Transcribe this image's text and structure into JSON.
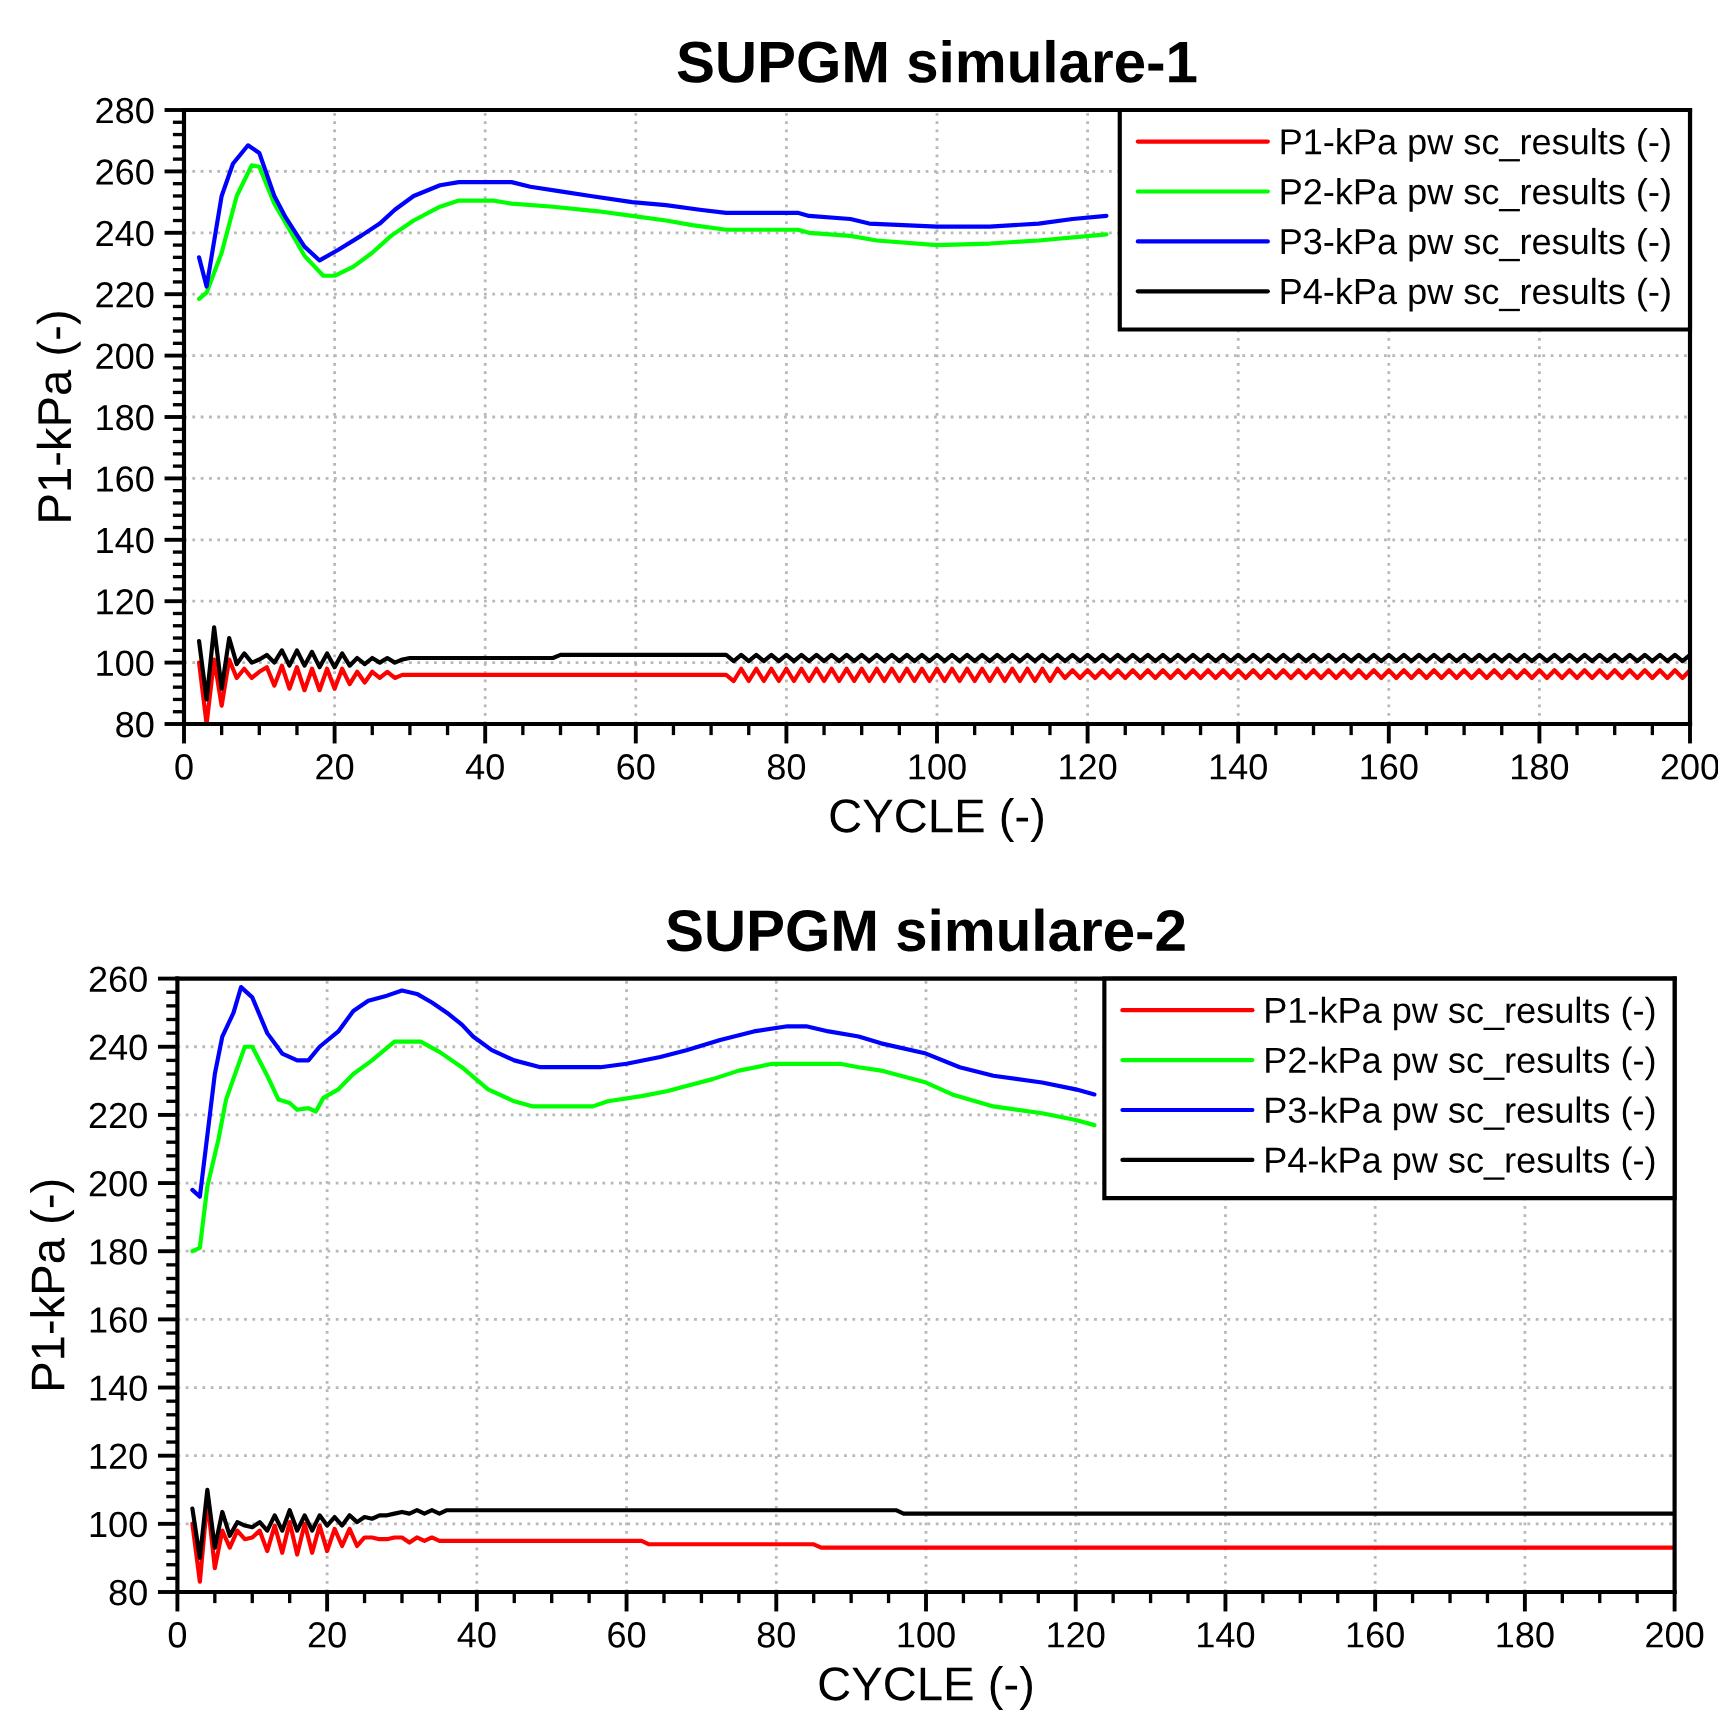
{
  "chart_data": [
    {
      "type": "line",
      "title": "SUPGM simulare-1",
      "xlabel": "CYCLE (-)",
      "ylabel": "P1-kPa (-)",
      "xlim": [
        0,
        200
      ],
      "ylim": [
        80,
        280
      ],
      "xticks": [
        0,
        {
          "value": 5,
          "label": null
        },
        {
          "value": 10,
          "label": null
        },
        {
          "value": 15,
          "label": null
        },
        20,
        {
          "value": 25,
          "label": null
        },
        {
          "value": 30,
          "label": null
        },
        {
          "value": 35,
          "label": null
        },
        40,
        {
          "value": 45,
          "label": null
        },
        {
          "value": 50,
          "label": null
        },
        {
          "value": 55,
          "label": null
        },
        60,
        {
          "value": 65,
          "label": null
        },
        {
          "value": 70,
          "label": null
        },
        {
          "value": 75,
          "label": null
        },
        80,
        {
          "value": 85,
          "label": null
        },
        {
          "value": 90,
          "label": null
        },
        {
          "value": 95,
          "label": null
        },
        100,
        {
          "value": 105,
          "label": null
        },
        {
          "value": 110,
          "label": null
        },
        {
          "value": 115,
          "label": null
        },
        120,
        {
          "value": 125,
          "label": null
        },
        {
          "value": 130,
          "label": null
        },
        {
          "value": 135,
          "label": null
        },
        140,
        {
          "value": 145,
          "label": null
        },
        {
          "value": 150,
          "label": null
        },
        {
          "value": 155,
          "label": null
        },
        160,
        {
          "value": 165,
          "label": null
        },
        {
          "value": 170,
          "label": null
        },
        {
          "value": 175,
          "label": null
        },
        180,
        {
          "value": 185,
          "label": null
        },
        {
          "value": 190,
          "label": null
        },
        {
          "value": 195,
          "label": null
        },
        200
      ],
      "yticks": [
        80,
        {
          "value": 84,
          "label": null
        },
        {
          "value": 88,
          "label": null
        },
        {
          "value": 92,
          "label": null
        },
        {
          "value": 96,
          "label": null
        },
        100,
        {
          "value": 104,
          "label": null
        },
        {
          "value": 108,
          "label": null
        },
        {
          "value": 112,
          "label": null
        },
        {
          "value": 116,
          "label": null
        },
        120,
        {
          "value": 124,
          "label": null
        },
        {
          "value": 128,
          "label": null
        },
        {
          "value": 132,
          "label": null
        },
        {
          "value": 136,
          "label": null
        },
        140,
        {
          "value": 144,
          "label": null
        },
        {
          "value": 148,
          "label": null
        },
        {
          "value": 152,
          "label": null
        },
        {
          "value": 156,
          "label": null
        },
        160,
        {
          "value": 164,
          "label": null
        },
        {
          "value": 168,
          "label": null
        },
        {
          "value": 172,
          "label": null
        },
        {
          "value": 176,
          "label": null
        },
        180,
        {
          "value": 184,
          "label": null
        },
        {
          "value": 188,
          "label": null
        },
        {
          "value": 192,
          "label": null
        },
        {
          "value": 196,
          "label": null
        },
        200,
        {
          "value": 204,
          "label": null
        },
        {
          "value": 208,
          "label": null
        },
        {
          "value": 212,
          "label": null
        },
        {
          "value": 216,
          "label": null
        },
        220,
        {
          "value": 224,
          "label": null
        },
        {
          "value": 228,
          "label": null
        },
        {
          "value": 232,
          "label": null
        },
        {
          "value": 236,
          "label": null
        },
        240,
        {
          "value": 244,
          "label": null
        },
        {
          "value": 248,
          "label": null
        },
        {
          "value": 252,
          "label": null
        },
        {
          "value": 256,
          "label": null
        },
        260,
        {
          "value": 264,
          "label": null
        },
        {
          "value": 268,
          "label": null
        },
        {
          "value": 272,
          "label": null
        },
        {
          "value": 276,
          "label": null
        },
        280
      ],
      "grid": true,
      "legend": "top right",
      "line_style": "solid",
      "series": [
        {
          "name": "P1-kPa pw sc_results (-)",
          "color": "#ff0000",
          "x": [
            2,
            3,
            4,
            5,
            6,
            7,
            8,
            9,
            10,
            11,
            12,
            13,
            14,
            15,
            16,
            17,
            18,
            19,
            20,
            21,
            22,
            23,
            24,
            25,
            26,
            27,
            28,
            29,
            30,
            72,
            73,
            74,
            75,
            76,
            77,
            78,
            79,
            80,
            81,
            82,
            83,
            84,
            85,
            86,
            87,
            88,
            89,
            90,
            91,
            92,
            93,
            94,
            95,
            96,
            97,
            98,
            99,
            100,
            101,
            102,
            103,
            104,
            105,
            106,
            107,
            108,
            109,
            110,
            111,
            112,
            113,
            114,
            115,
            116,
            117,
            118,
            119,
            120,
            121,
            122,
            123,
            124,
            125,
            126,
            127,
            128,
            129,
            130,
            131,
            132,
            133,
            134,
            135,
            136,
            137,
            138,
            139,
            140,
            141,
            142,
            143,
            144,
            145,
            146,
            147,
            148,
            149,
            150,
            151,
            152,
            153,
            154,
            155,
            156,
            157,
            158,
            159,
            160,
            161,
            162,
            163,
            164,
            165,
            166,
            167,
            168,
            169,
            170,
            171,
            172,
            173,
            174,
            175,
            176,
            177,
            178,
            179,
            180,
            181,
            182,
            183,
            184,
            185,
            186,
            187,
            188,
            189,
            190,
            191,
            192,
            193,
            194,
            195,
            196,
            197,
            198,
            199,
            200
          ],
          "values": [
            100,
            80,
            101,
            86,
            101,
            95,
            98,
            95,
            97,
            98.5,
            92.5,
            99,
            91.5,
            98.5,
            91,
            98,
            91,
            98,
            91.5,
            98,
            93,
            97,
            93.5,
            97,
            95,
            97,
            95,
            96,
            96,
            96,
            94,
            98,
            94,
            98,
            94,
            98,
            94,
            98,
            94,
            98,
            94,
            98,
            94,
            98,
            94,
            98,
            94,
            98,
            94,
            98,
            94,
            98,
            94,
            98,
            94,
            98,
            94,
            98,
            94,
            98,
            94,
            98,
            94,
            98,
            94,
            98,
            94,
            98,
            94,
            98,
            94,
            98,
            94,
            98,
            95,
            97.5,
            95,
            97.5,
            95,
            97.5,
            95,
            97.5,
            95,
            97.5,
            95,
            97.5,
            95,
            97.5,
            95,
            97.5,
            95,
            97.5,
            95,
            97.5,
            95,
            97.5,
            95,
            97.5,
            95,
            97.5,
            95,
            97.5,
            95,
            97.5,
            95,
            97.5,
            95,
            97.5,
            95,
            97.5,
            95,
            97.5,
            95,
            97.5,
            95,
            97.5,
            95,
            97.5,
            95,
            97.5,
            95,
            97.5,
            95,
            97.5,
            95,
            97.5,
            95,
            97.5,
            95,
            97.5,
            95,
            97.5,
            95,
            97.5,
            95,
            97.5,
            95,
            97.5,
            95,
            97.5,
            95,
            97.5,
            95,
            97.5,
            95,
            97.5,
            95,
            97.5,
            95,
            97.5,
            95,
            97.5,
            95,
            97.5,
            95,
            97.5,
            95,
            97.5
          ]
        },
        {
          "name": "P2-kPa pw sc_results (-)",
          "color": "#00ff00",
          "x": [
            2,
            3,
            5,
            7,
            9,
            10,
            12,
            14.5,
            16,
            18.5,
            20,
            22.5,
            25,
            27.5,
            30.5,
            34,
            36.5,
            41,
            43.5,
            49,
            55,
            59.5,
            64,
            67.5,
            72,
            81.5,
            83,
            88.5,
            92,
            100,
            107,
            113.5,
            122.5
          ],
          "values": [
            218.5,
            220.5,
            233.5,
            252,
            262,
            261.5,
            249.5,
            239,
            232.5,
            226,
            226,
            229,
            233.5,
            239,
            244,
            248.5,
            250.5,
            250.5,
            249.5,
            248.5,
            247,
            245.5,
            244,
            242.5,
            241,
            241,
            240,
            239,
            237.5,
            236,
            236.5,
            237.5,
            239.5
          ]
        },
        {
          "name": "P3-kPa pw sc_results (-)",
          "color": "#0000ff",
          "x": [
            2,
            3,
            5,
            6.5,
            8.5,
            10,
            12,
            13.5,
            16,
            18,
            20.5,
            23.5,
            26,
            28,
            30.5,
            34,
            36.5,
            43.5,
            46,
            50,
            54,
            59.5,
            64,
            68.5,
            72,
            81.5,
            83,
            88.5,
            91,
            95.5,
            100,
            107,
            113.5,
            118,
            122.5
          ],
          "values": [
            232,
            222.5,
            252,
            262.5,
            268.5,
            266,
            252,
            245,
            235.5,
            231,
            234.5,
            239,
            243,
            247.5,
            252,
            255.5,
            256.5,
            256.5,
            255,
            253.5,
            252,
            250,
            249,
            247.5,
            246.5,
            246.5,
            245.5,
            244.5,
            243,
            242.5,
            242,
            242,
            243,
            244.5,
            245.5
          ]
        },
        {
          "name": "P4-kPa pw sc_results (-)",
          "color": "#000000",
          "x": [
            2,
            3,
            4,
            5,
            6,
            7,
            8,
            9,
            10,
            11,
            12,
            13,
            14,
            15,
            16,
            17,
            18,
            19,
            20,
            21,
            22,
            23,
            24,
            25,
            26,
            27,
            28,
            29,
            30,
            49,
            50,
            72,
            73,
            74,
            75,
            76,
            77,
            78,
            79,
            80,
            81,
            82,
            83,
            84,
            85,
            86,
            87,
            88,
            89,
            90,
            91,
            92,
            93,
            94,
            95,
            96,
            97,
            98,
            99,
            100,
            101,
            102,
            103,
            104,
            105,
            106,
            107,
            108,
            109,
            110,
            111,
            112,
            113,
            114,
            115,
            116,
            117,
            118,
            119,
            120,
            121,
            122,
            123,
            124,
            125,
            126,
            127,
            128,
            129,
            130,
            131,
            132,
            133,
            134,
            135,
            136,
            137,
            138,
            139,
            140,
            141,
            142,
            143,
            144,
            145,
            146,
            147,
            148,
            149,
            150,
            151,
            152,
            153,
            154,
            155,
            156,
            157,
            158,
            159,
            160,
            161,
            162,
            163,
            164,
            165,
            166,
            167,
            168,
            169,
            170,
            171,
            172,
            173,
            174,
            175,
            176,
            177,
            178,
            179,
            180,
            181,
            182,
            183,
            184,
            185,
            186,
            187,
            188,
            189,
            190,
            191,
            192,
            193,
            194,
            195,
            196,
            197,
            198,
            199,
            200
          ],
          "values": [
            107,
            88,
            111.5,
            91.5,
            108,
            99.5,
            103,
            100,
            101,
            102.5,
            100,
            104,
            99,
            104,
            99,
            103.5,
            98.5,
            103,
            98.5,
            103,
            99,
            101.5,
            99.5,
            101.5,
            100,
            101.5,
            100,
            101,
            101.5,
            101.5,
            102.5,
            102.5,
            100.5,
            102.5,
            100.5,
            102.5,
            100.5,
            102.5,
            100.5,
            102.5,
            100.5,
            102.5,
            100.5,
            102.5,
            100.5,
            102.5,
            100.5,
            102.5,
            100.5,
            102.5,
            100.5,
            102.5,
            100.5,
            102.5,
            100.5,
            102.5,
            100.5,
            102.5,
            100.5,
            102.5,
            100.5,
            102.5,
            100.5,
            102.5,
            100.5,
            102.5,
            100.5,
            102.5,
            100.5,
            102.5,
            100.5,
            102.5,
            100.5,
            102.5,
            100.5,
            102.5,
            100.5,
            102.5,
            100.5,
            102.5,
            100.5,
            102.5,
            100.5,
            102.5,
            100.5,
            102.5,
            100.5,
            102.5,
            100.5,
            102.5,
            100.5,
            102.5,
            100.5,
            102.5,
            100.5,
            102.5,
            100.5,
            102.5,
            100.5,
            102.5,
            100.5,
            102.5,
            100.5,
            102.5,
            100.5,
            102.5,
            100.5,
            102.5,
            100.5,
            102.5,
            100.5,
            102.5,
            100.5,
            102.5,
            100.5,
            102.5,
            100.5,
            102.5,
            100.5,
            102.5,
            100.5,
            102.5,
            100.5,
            102.5,
            100.5,
            102.5,
            100.5,
            102.5,
            100.5,
            102.5,
            100.5,
            102.5,
            100.5,
            102.5,
            100.5,
            102.5,
            100.5,
            102.5,
            100.5,
            102.5,
            100.5,
            102.5,
            100.5,
            102.5,
            100.5,
            102.5,
            100.5,
            102.5,
            100.5,
            102.5,
            100.5,
            102.5,
            100.5,
            102.5,
            100.5,
            102.5,
            100.5,
            102.5,
            100.5,
            102.5
          ]
        }
      ]
    },
    {
      "type": "line",
      "title": "SUPGM simulare-2",
      "xlabel": "CYCLE (-)",
      "ylabel": "P1-kPa (-)",
      "xlim": [
        0,
        200
      ],
      "ylim": [
        80,
        260
      ],
      "xticks": [
        0,
        {
          "value": 5,
          "label": null
        },
        {
          "value": 10,
          "label": null
        },
        {
          "value": 15,
          "label": null
        },
        20,
        {
          "value": 25,
          "label": null
        },
        {
          "value": 30,
          "label": null
        },
        {
          "value": 35,
          "label": null
        },
        40,
        {
          "value": 45,
          "label": null
        },
        {
          "value": 50,
          "label": null
        },
        {
          "value": 55,
          "label": null
        },
        60,
        {
          "value": 65,
          "label": null
        },
        {
          "value": 70,
          "label": null
        },
        {
          "value": 75,
          "label": null
        },
        80,
        {
          "value": 85,
          "label": null
        },
        {
          "value": 90,
          "label": null
        },
        {
          "value": 95,
          "label": null
        },
        100,
        {
          "value": 105,
          "label": null
        },
        {
          "value": 110,
          "label": null
        },
        {
          "value": 115,
          "label": null
        },
        120,
        {
          "value": 125,
          "label": null
        },
        {
          "value": 130,
          "label": null
        },
        {
          "value": 135,
          "label": null
        },
        140,
        {
          "value": 145,
          "label": null
        },
        {
          "value": 150,
          "label": null
        },
        {
          "value": 155,
          "label": null
        },
        160,
        {
          "value": 165,
          "label": null
        },
        {
          "value": 170,
          "label": null
        },
        {
          "value": 175,
          "label": null
        },
        180,
        {
          "value": 185,
          "label": null
        },
        {
          "value": 190,
          "label": null
        },
        {
          "value": 195,
          "label": null
        },
        200
      ],
      "yticks": [
        80,
        {
          "value": 84,
          "label": null
        },
        {
          "value": 88,
          "label": null
        },
        {
          "value": 92,
          "label": null
        },
        {
          "value": 96,
          "label": null
        },
        100,
        {
          "value": 104,
          "label": null
        },
        {
          "value": 108,
          "label": null
        },
        {
          "value": 112,
          "label": null
        },
        {
          "value": 116,
          "label": null
        },
        120,
        {
          "value": 124,
          "label": null
        },
        {
          "value": 128,
          "label": null
        },
        {
          "value": 132,
          "label": null
        },
        {
          "value": 136,
          "label": null
        },
        140,
        {
          "value": 144,
          "label": null
        },
        {
          "value": 148,
          "label": null
        },
        {
          "value": 152,
          "label": null
        },
        {
          "value": 156,
          "label": null
        },
        160,
        {
          "value": 164,
          "label": null
        },
        {
          "value": 168,
          "label": null
        },
        {
          "value": 172,
          "label": null
        },
        {
          "value": 176,
          "label": null
        },
        180,
        {
          "value": 184,
          "label": null
        },
        {
          "value": 188,
          "label": null
        },
        {
          "value": 192,
          "label": null
        },
        {
          "value": 196,
          "label": null
        },
        200,
        {
          "value": 204,
          "label": null
        },
        {
          "value": 208,
          "label": null
        },
        {
          "value": 212,
          "label": null
        },
        {
          "value": 216,
          "label": null
        },
        220,
        {
          "value": 224,
          "label": null
        },
        {
          "value": 228,
          "label": null
        },
        {
          "value": 232,
          "label": null
        },
        {
          "value": 236,
          "label": null
        },
        240,
        {
          "value": 244,
          "label": null
        },
        {
          "value": 248,
          "label": null
        },
        {
          "value": 252,
          "label": null
        },
        {
          "value": 256,
          "label": null
        },
        260
      ],
      "grid": true,
      "legend": "top right",
      "line_style": "solid",
      "series": [
        {
          "name": "P1-kPa pw sc_results (-)",
          "color": "#ff0000",
          "x": [
            2,
            3,
            4,
            5,
            6,
            7,
            8,
            9,
            10,
            11,
            12,
            13,
            14,
            15,
            16,
            17,
            18,
            19,
            20,
            21,
            22,
            23,
            24,
            25,
            26,
            27,
            28,
            29,
            30,
            31,
            32,
            33,
            34,
            35,
            62,
            63,
            85,
            86,
            200
          ],
          "values": [
            100,
            83,
            107,
            87,
            98,
            93,
            98,
            95.5,
            96,
            98,
            92,
            99.5,
            91.5,
            100.5,
            91,
            100,
            91.5,
            99.5,
            92,
            98.5,
            93.5,
            98.5,
            93.5,
            96,
            96,
            95.5,
            95.5,
            96,
            96,
            94.5,
            96,
            95,
            96,
            95,
            95,
            94,
            94,
            93,
            93
          ]
        },
        {
          "name": "P2-kPa pw sc_results (-)",
          "color": "#00ff00",
          "x": [
            2,
            3,
            4,
            5.5,
            6.5,
            9,
            10,
            12,
            13.5,
            15,
            16,
            17.5,
            18.5,
            19.5,
            21.5,
            23.5,
            26,
            29,
            32.5,
            35,
            38,
            41.5,
            45,
            47.5,
            55.5,
            57.5,
            62,
            65.5,
            68,
            71.5,
            75,
            79.5,
            88.5,
            91,
            94,
            100,
            103.5,
            109,
            115.5,
            120,
            122.5
          ],
          "values": [
            180,
            181,
            199,
            213,
            224.5,
            240,
            240,
            231.5,
            224.5,
            223.5,
            221.5,
            222,
            221,
            225,
            227.5,
            232,
            236,
            241.5,
            241.5,
            238.5,
            234,
            227.5,
            224,
            222.5,
            222.5,
            224,
            225.5,
            227,
            228.5,
            230.5,
            233,
            235,
            235,
            234,
            233,
            229.5,
            226,
            222.5,
            220.5,
            218.5,
            217
          ]
        },
        {
          "name": "P3-kPa pw sc_results (-)",
          "color": "#0000ff",
          "x": [
            2,
            3,
            5,
            6,
            7.5,
            8.5,
            10,
            12,
            14,
            16,
            17.5,
            19,
            21.5,
            23.5,
            25.5,
            28,
            30,
            32,
            34,
            36,
            38,
            39.5,
            42,
            45,
            48.5,
            56.5,
            60,
            64.5,
            68,
            72.5,
            77,
            81.5,
            84,
            87,
            91,
            94,
            100,
            104.5,
            109,
            115.5,
            120,
            122.5
          ],
          "values": [
            198,
            196,
            232,
            243,
            250,
            257.5,
            254.5,
            244,
            238,
            236,
            236,
            240,
            244.5,
            250.5,
            253.5,
            255,
            256.5,
            255.5,
            253,
            250,
            246.5,
            243,
            239,
            236,
            234,
            234,
            235,
            237,
            239,
            242,
            244.5,
            246,
            246,
            244.5,
            243,
            241,
            238,
            234,
            231.5,
            229.5,
            227.5,
            226
          ]
        },
        {
          "name": "P4-kPa pw sc_results (-)",
          "color": "#000000",
          "x": [
            2,
            3,
            4,
            5,
            6,
            7,
            8,
            9,
            10,
            11,
            12,
            13,
            14,
            15,
            16,
            17,
            18,
            19,
            20,
            21,
            22,
            23,
            24,
            25,
            26,
            27,
            28,
            29,
            30,
            31,
            32,
            33,
            34,
            35,
            36,
            96,
            97,
            200
          ],
          "values": [
            104.5,
            90,
            110,
            93,
            103.5,
            96.5,
            100.5,
            99.5,
            99,
            100.5,
            98,
            102.5,
            98,
            104,
            98,
            102.5,
            98,
            102.5,
            99.5,
            102,
            99.5,
            102.5,
            100.5,
            102,
            101.5,
            102.5,
            102.5,
            103,
            103.5,
            103,
            104,
            103,
            104,
            103,
            104,
            104,
            103,
            103
          ]
        }
      ]
    }
  ]
}
